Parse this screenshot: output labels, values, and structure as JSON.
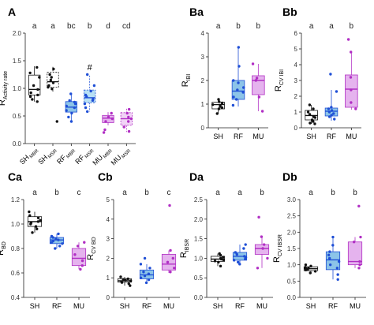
{
  "colors": {
    "SH": "#111111",
    "SH_fill": "#ffffff",
    "RF": "#1f4fd6",
    "RF_fill": "#8cc4e8",
    "RF_alt_fill": "#b7e0f4",
    "MU": "#b12fc4",
    "MU_fill": "#e5b3ee",
    "MU_alt_fill": "#f1d4f6",
    "axis": "#222222",
    "sig": "#222222"
  },
  "chart_data": [
    {
      "panel": "A",
      "type": "box",
      "ylabel": "R",
      "ylabel_sub": "Activity rate",
      "ylim": [
        0,
        2
      ],
      "yticks": [
        "0.0",
        "0.5",
        "1.0",
        "1.5",
        "2.0"
      ],
      "categories": [
        "SH MBR",
        "SH MSR",
        "RF MBR",
        "RF MSR",
        "MU MBR",
        "MU MSR"
      ],
      "tick_main": [
        "SH",
        "SH",
        "RF",
        "RF",
        "MU",
        "MU"
      ],
      "tick_sub": [
        "MBR",
        "MSR",
        "MBR",
        "MSR",
        "MBR",
        "MSR"
      ],
      "significance": [
        "a",
        "a",
        "bc",
        "b",
        "d",
        "cd"
      ],
      "annotation": "#",
      "annotation_group": 3,
      "groups": [
        "SH",
        "SH",
        "RF",
        "RF",
        "MU",
        "MU"
      ],
      "dashed": [
        false,
        true,
        false,
        true,
        false,
        true
      ],
      "boxes": [
        {
          "min": 0.76,
          "q1": 0.88,
          "median": 0.98,
          "q3": 1.24,
          "max": 1.4
        },
        {
          "min": 0.93,
          "q1": 1.02,
          "median": 1.12,
          "q3": 1.29,
          "max": 1.39
        },
        {
          "min": 0.4,
          "q1": 0.57,
          "median": 0.66,
          "q3": 0.76,
          "max": 0.9
        },
        {
          "min": 0.58,
          "q1": 0.74,
          "median": 0.83,
          "q3": 0.97,
          "max": 1.23
        },
        {
          "min": 0.33,
          "q1": 0.38,
          "median": 0.46,
          "q3": 0.51,
          "max": 0.57
        },
        {
          "min": 0.21,
          "q1": 0.33,
          "median": 0.45,
          "q3": 0.56,
          "max": 0.63
        }
      ],
      "points": [
        [
          1.38,
          1.28,
          1.05,
          0.98,
          0.92,
          0.88,
          0.85,
          1.2,
          0.8,
          0.76
        ],
        [
          1.35,
          1.2,
          1.15,
          1.1,
          1.05,
          1.02,
          0.4,
          1.25,
          0.99
        ],
        [
          0.9,
          0.78,
          0.72,
          0.68,
          0.65,
          0.6,
          0.55,
          0.48,
          0.4,
          0.75
        ],
        [
          1.25,
          1.05,
          0.95,
          0.88,
          0.85,
          0.8,
          0.78,
          0.72,
          0.65,
          0.58
        ],
        [
          0.55,
          0.48,
          0.45,
          0.4,
          0.25,
          0.2
        ],
        [
          0.62,
          0.55,
          0.48,
          0.45,
          0.4,
          0.3,
          0.22
        ]
      ]
    },
    {
      "panel": "Ba",
      "type": "box",
      "ylabel": "R",
      "ylabel_sub": "IBI",
      "ylim": [
        0,
        4
      ],
      "yticks": [
        "0",
        "1",
        "2",
        "3",
        "4"
      ],
      "categories": [
        "SH",
        "RF",
        "MU"
      ],
      "significance": [
        "a",
        "b",
        "b"
      ],
      "groups": [
        "SH",
        "RF",
        "MU"
      ],
      "boxes": [
        {
          "min": 0.6,
          "q1": 0.8,
          "median": 0.98,
          "q3": 1.08,
          "max": 1.22
        },
        {
          "min": 0.9,
          "q1": 1.2,
          "median": 1.55,
          "q3": 2.0,
          "max": 3.4
        },
        {
          "min": 0.7,
          "q1": 1.4,
          "median": 2.0,
          "q3": 2.2,
          "max": 2.7
        }
      ],
      "points": [
        [
          1.2,
          1.1,
          1.05,
          0.98,
          0.95,
          0.9,
          0.85,
          0.8,
          0.6
        ],
        [
          3.4,
          2.6,
          2.0,
          1.9,
          1.7,
          1.6,
          1.5,
          1.3,
          1.2,
          0.95
        ],
        [
          2.7,
          2.1,
          2.0,
          1.3,
          0.7
        ]
      ]
    },
    {
      "panel": "Bb",
      "type": "box",
      "ylabel": "R",
      "ylabel_sub": "CV IBI",
      "ylim": [
        0,
        6
      ],
      "yticks": [
        "0",
        "1",
        "2",
        "3",
        "4",
        "5",
        "6"
      ],
      "categories": [
        "SH",
        "RF",
        "MU"
      ],
      "significance": [
        "a",
        "a",
        "b"
      ],
      "groups": [
        "SH",
        "RF",
        "MU"
      ],
      "boxes": [
        {
          "min": 0.25,
          "q1": 0.5,
          "median": 0.78,
          "q3": 1.1,
          "max": 1.45
        },
        {
          "min": 0.45,
          "q1": 0.75,
          "median": 1.05,
          "q3": 1.25,
          "max": 2.4
        },
        {
          "min": 1.15,
          "q1": 1.3,
          "median": 2.45,
          "q3": 3.35,
          "max": 4.8
        }
      ],
      "points": [
        [
          1.45,
          1.2,
          1.0,
          0.85,
          0.7,
          0.65,
          0.5,
          0.4,
          0.3,
          0.25
        ],
        [
          3.4,
          2.3,
          1.3,
          1.2,
          1.1,
          1.0,
          0.9,
          0.8,
          0.7,
          0.55
        ],
        [
          5.6,
          4.8,
          3.2,
          2.4,
          1.6,
          1.2
        ]
      ]
    },
    {
      "panel": "Ca",
      "type": "box",
      "ylabel": "R",
      "ylabel_sub": "BD",
      "ylim": [
        0.4,
        1.2
      ],
      "yticks": [
        "0.4",
        "0.6",
        "0.8",
        "1.0",
        "1.2"
      ],
      "categories": [
        "SH",
        "RF",
        "MU"
      ],
      "significance": [
        "a",
        "b",
        "c"
      ],
      "groups": [
        "SH",
        "RF",
        "MU"
      ],
      "boxes": [
        {
          "min": 0.93,
          "q1": 0.98,
          "median": 1.02,
          "q3": 1.06,
          "max": 1.1
        },
        {
          "min": 0.8,
          "q1": 0.84,
          "median": 0.87,
          "q3": 0.89,
          "max": 0.92
        },
        {
          "min": 0.63,
          "q1": 0.66,
          "median": 0.72,
          "q3": 0.8,
          "max": 0.85
        }
      ],
      "points": [
        [
          1.1,
          1.07,
          1.05,
          1.03,
          1.02,
          1.01,
          1.0,
          0.98,
          0.96,
          0.93
        ],
        [
          0.92,
          0.9,
          0.89,
          0.88,
          0.87,
          0.86,
          0.85,
          0.84,
          0.82,
          0.8
        ],
        [
          0.85,
          0.82,
          0.75,
          0.7,
          0.66,
          0.63
        ]
      ]
    },
    {
      "panel": "Cb",
      "type": "box",
      "ylabel": "R",
      "ylabel_sub": "CV BD",
      "ylim": [
        0,
        5
      ],
      "yticks": [
        "0",
        "1",
        "2",
        "3",
        "4",
        "5"
      ],
      "categories": [
        "SH",
        "RF",
        "MU"
      ],
      "significance": [
        "a",
        "b",
        "c"
      ],
      "groups": [
        "SH",
        "RF",
        "MU"
      ],
      "boxes": [
        {
          "min": 0.6,
          "q1": 0.78,
          "median": 0.85,
          "q3": 0.95,
          "max": 1.05
        },
        {
          "min": 0.7,
          "q1": 0.95,
          "median": 1.15,
          "q3": 1.4,
          "max": 1.7
        },
        {
          "min": 1.25,
          "q1": 1.4,
          "median": 1.7,
          "q3": 2.2,
          "max": 2.4
        }
      ],
      "points": [
        [
          1.05,
          0.95,
          0.92,
          0.88,
          0.85,
          0.8,
          0.76,
          0.7,
          0.6
        ],
        [
          2.0,
          1.7,
          1.5,
          1.3,
          1.2,
          1.1,
          1.0,
          0.9,
          0.75
        ],
        [
          4.7,
          2.4,
          2.0,
          1.8,
          1.5,
          1.3
        ]
      ]
    },
    {
      "panel": "Da",
      "type": "box",
      "ylabel": "R",
      "ylabel_sub": "IBSR",
      "ylim": [
        0,
        2.5
      ],
      "yticks": [
        "0.0",
        "0.5",
        "1.0",
        "1.5",
        "2.0",
        "2.5"
      ],
      "categories": [
        "SH",
        "RF",
        "MU"
      ],
      "significance": [
        "a",
        "a",
        "b"
      ],
      "groups": [
        "SH",
        "RF",
        "MU"
      ],
      "boxes": [
        {
          "min": 0.8,
          "q1": 0.92,
          "median": 0.98,
          "q3": 1.05,
          "max": 1.12
        },
        {
          "min": 0.85,
          "q1": 0.95,
          "median": 1.05,
          "q3": 1.15,
          "max": 1.35
        },
        {
          "min": 0.75,
          "q1": 1.1,
          "median": 1.25,
          "q3": 1.35,
          "max": 1.55
        }
      ],
      "points": [
        [
          1.12,
          1.08,
          1.03,
          1.0,
          0.98,
          0.96,
          0.93,
          0.9,
          0.8
        ],
        [
          1.35,
          1.25,
          1.15,
          1.1,
          1.05,
          1.02,
          0.98,
          0.95,
          0.9,
          0.85
        ],
        [
          2.05,
          1.55,
          1.35,
          1.25,
          1.0,
          0.75
        ]
      ]
    },
    {
      "panel": "Db",
      "type": "box",
      "ylabel": "R",
      "ylabel_sub": "CV IBSR",
      "ylim": [
        0,
        3
      ],
      "yticks": [
        "0.0",
        "0.5",
        "1.0",
        "1.5",
        "2.0",
        "2.5",
        "3.0"
      ],
      "categories": [
        "SH",
        "RF",
        "MU"
      ],
      "significance": [
        "a",
        "b",
        "b"
      ],
      "groups": [
        "SH",
        "RF",
        "MU"
      ],
      "boxes": [
        {
          "min": 0.75,
          "q1": 0.82,
          "median": 0.88,
          "q3": 0.94,
          "max": 1.0
        },
        {
          "min": 0.55,
          "q1": 0.85,
          "median": 1.15,
          "q3": 1.4,
          "max": 1.85
        },
        {
          "min": 0.9,
          "q1": 1.0,
          "median": 1.1,
          "q3": 1.7,
          "max": 1.85
        }
      ],
      "points": [
        [
          1.0,
          0.96,
          0.92,
          0.9,
          0.88,
          0.86,
          0.84,
          0.8,
          0.75
        ],
        [
          1.85,
          1.6,
          1.4,
          1.3,
          1.2,
          1.1,
          1.0,
          0.9,
          0.7,
          0.55
        ],
        [
          2.8,
          1.85,
          1.7,
          1.1,
          1.0,
          0.9
        ]
      ]
    }
  ]
}
